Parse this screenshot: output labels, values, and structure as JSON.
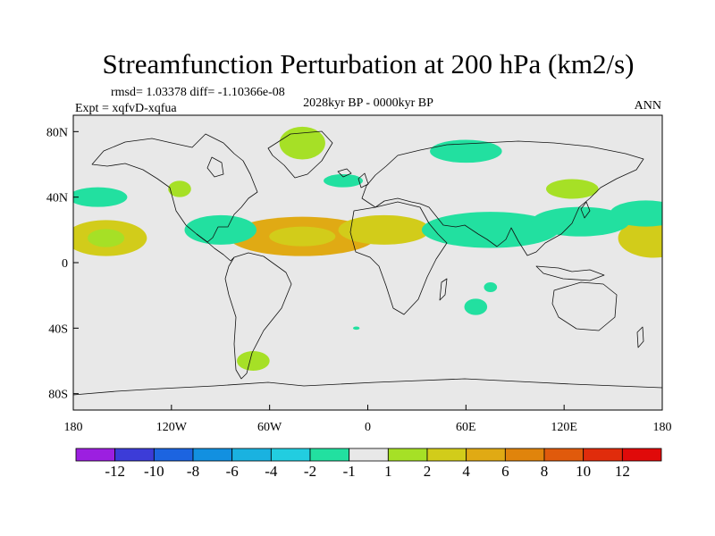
{
  "chart_data": {
    "type": "heatmap",
    "title": "Streamfunction Perturbation at 200 hPa (km2/s)",
    "stats_text": "rmsd= 1.03378 diff= -1.10366e-08",
    "left_label": "Expt = xqfvD-xqfua",
    "center_label": "2028kyr BP - 0000kyr BP",
    "right_label": "ANN",
    "x_axis": {
      "range": [
        -180,
        180
      ],
      "ticks": [
        -180,
        -120,
        -60,
        0,
        60,
        120,
        180
      ],
      "tick_labels": [
        "180",
        "120W",
        "60W",
        "0",
        "60E",
        "120E",
        "180"
      ]
    },
    "y_axis": {
      "range": [
        -90,
        90
      ],
      "ticks": [
        80,
        40,
        0,
        -40,
        -80
      ],
      "tick_labels": [
        "80N",
        "40N",
        "0",
        "40S",
        "80S"
      ]
    },
    "colorbar": {
      "labels": [
        "-12",
        "-10",
        "-8",
        "-6",
        "-4",
        "-2",
        "-1",
        "1",
        "2",
        "4",
        "6",
        "8",
        "10",
        "12"
      ],
      "colors": [
        "#9c1fe0",
        "#3c3cd8",
        "#1c64e0",
        "#1290e0",
        "#1ab2e0",
        "#22cde0",
        "#22e0a0",
        "#e8e8e8",
        "#a6e026",
        "#d2cc1a",
        "#e0aa14",
        "#e0840c",
        "#e05a0c",
        "#e02c0c",
        "#e00a0a"
      ]
    },
    "background_color": "#e8e8e8",
    "anomalies": [
      {
        "name": "n-atlantic-tropical-high",
        "lon": -40,
        "lat": 16,
        "rlon": 45,
        "rlat": 12,
        "level": 6,
        "core": 4
      },
      {
        "name": "n-africa-high",
        "lon": 10,
        "lat": 20,
        "rlon": 28,
        "rlat": 9,
        "level": 4
      },
      {
        "name": "greenland-high",
        "lon": -40,
        "lat": 73,
        "rlon": 14,
        "rlat": 10,
        "level": 2
      },
      {
        "name": "central-pacific-high",
        "lon": -160,
        "lat": 15,
        "rlon": 25,
        "rlat": 11,
        "level": 4,
        "core": 2
      },
      {
        "name": "west-pacific-high",
        "lon": 175,
        "lat": 15,
        "rlon": 22,
        "rlat": 12,
        "level": 4
      },
      {
        "name": "east-asia-high",
        "lon": 125,
        "lat": 45,
        "rlon": 16,
        "rlat": 6,
        "level": 2
      },
      {
        "name": "n-america-high",
        "lon": -115,
        "lat": 45,
        "rlon": 7,
        "rlat": 5,
        "level": 2
      },
      {
        "name": "patagonia-high",
        "lon": -70,
        "lat": -60,
        "rlon": 10,
        "rlat": 6,
        "level": 2
      },
      {
        "name": "asia-low",
        "lon": 75,
        "lat": 20,
        "rlon": 42,
        "rlat": 11,
        "level": -2
      },
      {
        "name": "asia-low-east",
        "lon": 130,
        "lat": 25,
        "rlon": 30,
        "rlat": 9,
        "level": -2
      },
      {
        "name": "pacific-low-east",
        "lon": 170,
        "lat": 30,
        "rlon": 22,
        "rlat": 8,
        "level": -2
      },
      {
        "name": "caribbean-low",
        "lon": -90,
        "lat": 20,
        "rlon": 22,
        "rlat": 9,
        "level": -2
      },
      {
        "name": "ne-pacific-low",
        "lon": -165,
        "lat": 40,
        "rlon": 18,
        "rlat": 6,
        "level": -2
      },
      {
        "name": "europe-low",
        "lon": -15,
        "lat": 50,
        "rlon": 12,
        "rlat": 4,
        "level": -2
      },
      {
        "name": "arctic-siberia-low",
        "lon": 60,
        "lat": 68,
        "rlon": 22,
        "rlat": 7,
        "level": -2
      },
      {
        "name": "indian-ocean-low",
        "lon": 75,
        "lat": -15,
        "rlon": 4,
        "rlat": 3,
        "level": -2
      },
      {
        "name": "s-indian-low",
        "lon": 66,
        "lat": -27,
        "rlon": 7,
        "rlat": 5,
        "level": -2
      },
      {
        "name": "s-atlantic-low",
        "lon": -7,
        "lat": -40,
        "rlon": 2,
        "rlat": 1,
        "level": -2
      }
    ]
  }
}
